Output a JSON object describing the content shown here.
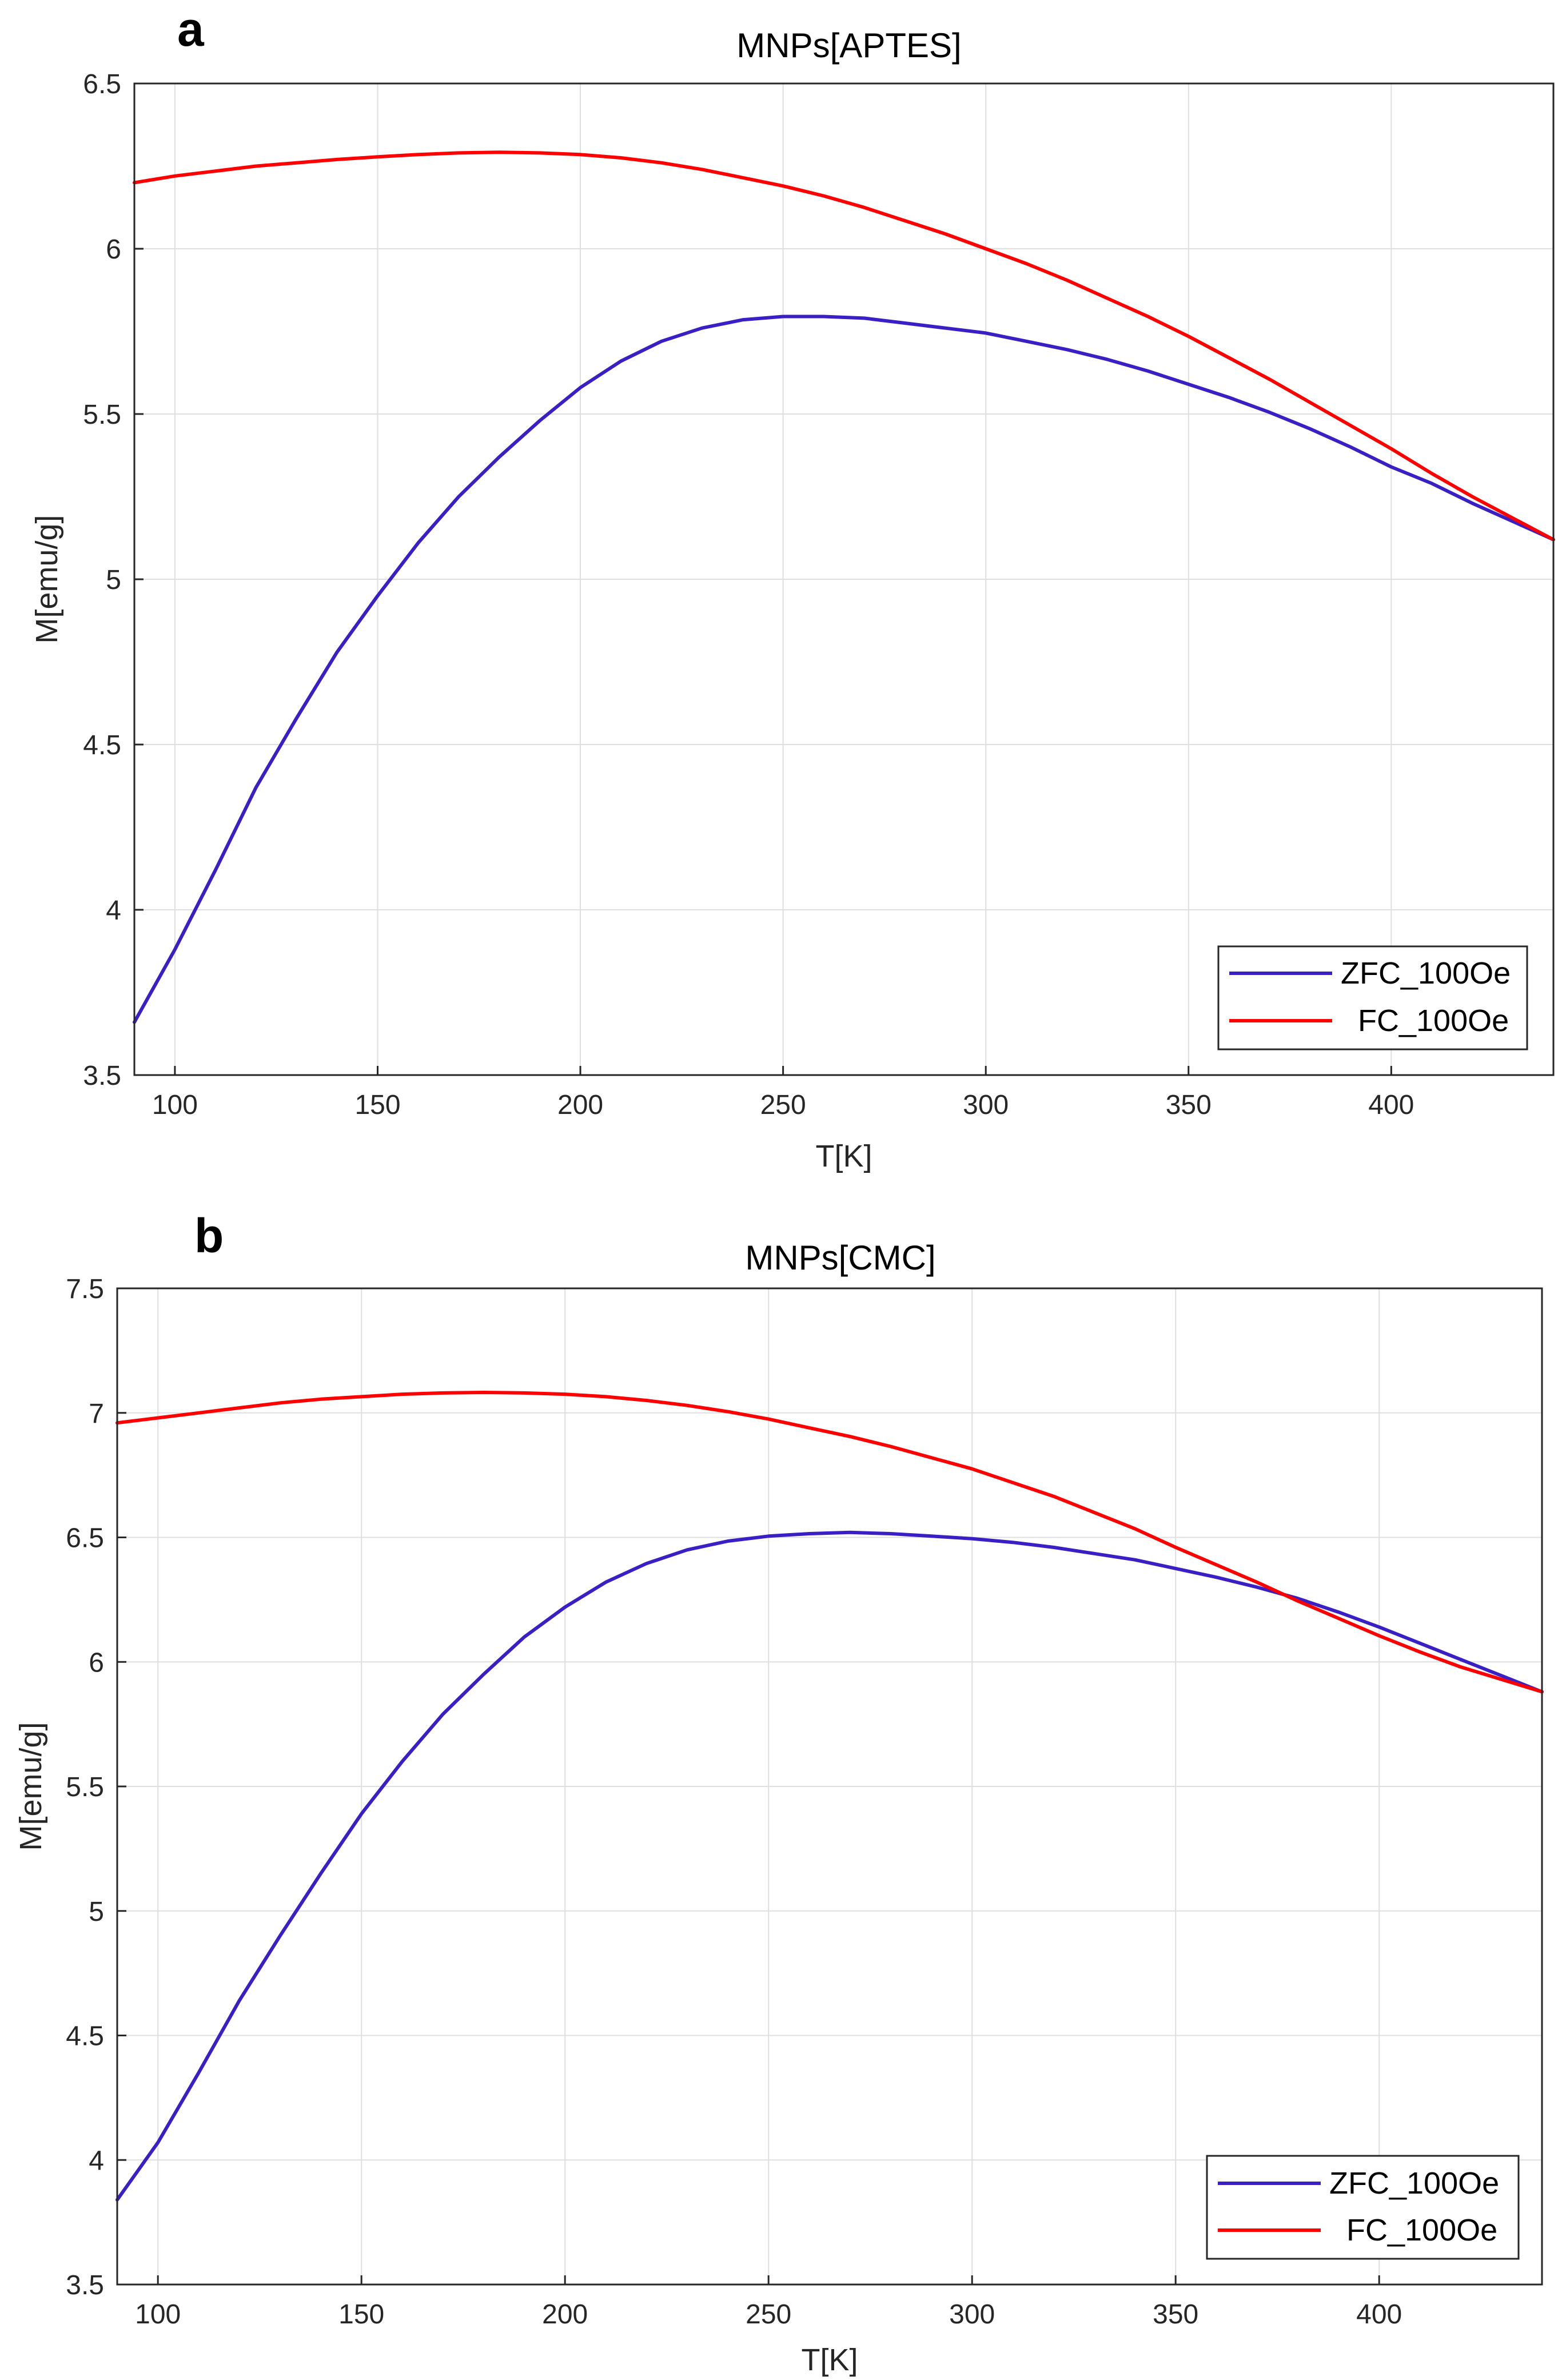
{
  "chart_data": [
    {
      "type": "line",
      "panel_label": "a",
      "title": "MNPs[APTES]",
      "xlabel": "T[K]",
      "ylabel": "M[emu/g]",
      "xlim": [
        90,
        440
      ],
      "ylim": [
        3.5,
        6.5
      ],
      "xticks": [
        100,
        150,
        200,
        250,
        300,
        350,
        400
      ],
      "xtick_labels": [
        "100",
        "150",
        "200",
        "250",
        "300",
        "350",
        "400"
      ],
      "yticks": [
        3.5,
        4,
        4.5,
        5,
        5.5,
        6,
        6.5
      ],
      "ytick_labels": [
        "3.5",
        "4",
        "4.5",
        "5",
        "5.5",
        "6",
        "6.5"
      ],
      "grid": true,
      "legend_position": "bottom-right",
      "series": [
        {
          "name": "ZFC_100Oe",
          "color": "#3a1fc4",
          "x": [
            90,
            100,
            110,
            120,
            130,
            140,
            150,
            160,
            170,
            180,
            190,
            200,
            210,
            220,
            230,
            240,
            250,
            260,
            270,
            280,
            290,
            300,
            310,
            320,
            330,
            340,
            350,
            360,
            370,
            380,
            390,
            400,
            410,
            420,
            430,
            440
          ],
          "y": [
            3.66,
            3.88,
            4.12,
            4.37,
            4.58,
            4.78,
            4.95,
            5.11,
            5.25,
            5.37,
            5.48,
            5.58,
            5.66,
            5.72,
            5.76,
            5.785,
            5.795,
            5.795,
            5.79,
            5.775,
            5.76,
            5.745,
            5.72,
            5.695,
            5.665,
            5.63,
            5.59,
            5.55,
            5.505,
            5.455,
            5.4,
            5.34,
            5.29,
            5.23,
            5.175,
            5.12
          ]
        },
        {
          "name": "FC_100Oe",
          "color": "#ff0000",
          "x": [
            90,
            100,
            110,
            120,
            130,
            140,
            150,
            160,
            170,
            180,
            190,
            200,
            210,
            220,
            230,
            240,
            250,
            260,
            270,
            280,
            290,
            300,
            310,
            320,
            330,
            340,
            350,
            360,
            370,
            380,
            390,
            400,
            410,
            420,
            430,
            440
          ],
          "y": [
            6.2,
            6.22,
            6.235,
            6.25,
            6.26,
            6.27,
            6.278,
            6.285,
            6.29,
            6.292,
            6.29,
            6.285,
            6.275,
            6.26,
            6.24,
            6.215,
            6.19,
            6.16,
            6.125,
            6.085,
            6.045,
            6.0,
            5.955,
            5.905,
            5.85,
            5.795,
            5.735,
            5.67,
            5.605,
            5.535,
            5.465,
            5.395,
            5.32,
            5.25,
            5.185,
            5.12
          ]
        }
      ]
    },
    {
      "type": "line",
      "panel_label": "b",
      "title": "MNPs[CMC]",
      "xlabel": "T[K]",
      "ylabel": "M[emu/g]",
      "xlim": [
        90,
        440
      ],
      "ylim": [
        3.5,
        7.5
      ],
      "xticks": [
        100,
        150,
        200,
        250,
        300,
        350,
        400
      ],
      "xtick_labels": [
        "100",
        "150",
        "200",
        "250",
        "300",
        "350",
        "400"
      ],
      "yticks": [
        3.5,
        4,
        4.5,
        5,
        5.5,
        6,
        6.5,
        7,
        7.5
      ],
      "ytick_labels": [
        "3.5",
        "4",
        "4.5",
        "5",
        "5.5",
        "6",
        "6.5",
        "7",
        "7.5"
      ],
      "grid": true,
      "legend_position": "bottom-right",
      "series": [
        {
          "name": "ZFC_100Oe",
          "color": "#3a1fc4",
          "x": [
            90,
            100,
            110,
            120,
            130,
            140,
            150,
            160,
            170,
            180,
            190,
            200,
            210,
            220,
            230,
            240,
            250,
            260,
            270,
            280,
            290,
            300,
            310,
            320,
            330,
            340,
            350,
            360,
            370,
            380,
            390,
            400,
            410,
            420,
            430,
            440
          ],
          "y": [
            3.84,
            4.07,
            4.35,
            4.64,
            4.9,
            5.15,
            5.39,
            5.6,
            5.79,
            5.95,
            6.1,
            6.22,
            6.32,
            6.395,
            6.45,
            6.485,
            6.505,
            6.515,
            6.52,
            6.515,
            6.505,
            6.495,
            6.48,
            6.46,
            6.435,
            6.41,
            6.375,
            6.34,
            6.3,
            6.255,
            6.2,
            6.14,
            6.075,
            6.01,
            5.945,
            5.88
          ]
        },
        {
          "name": "FC_100Oe",
          "color": "#ff0000",
          "x": [
            90,
            100,
            110,
            120,
            130,
            140,
            150,
            160,
            170,
            180,
            190,
            200,
            210,
            220,
            230,
            240,
            250,
            260,
            270,
            280,
            290,
            300,
            310,
            320,
            330,
            340,
            350,
            360,
            370,
            380,
            390,
            400,
            410,
            420,
            430,
            440
          ],
          "y": [
            6.96,
            6.98,
            7.0,
            7.02,
            7.04,
            7.055,
            7.065,
            7.075,
            7.08,
            7.082,
            7.08,
            7.075,
            7.065,
            7.05,
            7.03,
            7.005,
            6.975,
            6.94,
            6.905,
            6.865,
            6.82,
            6.775,
            6.72,
            6.665,
            6.6,
            6.535,
            6.46,
            6.39,
            6.32,
            6.245,
            6.175,
            6.105,
            6.04,
            5.98,
            5.93,
            5.88
          ]
        }
      ]
    }
  ]
}
